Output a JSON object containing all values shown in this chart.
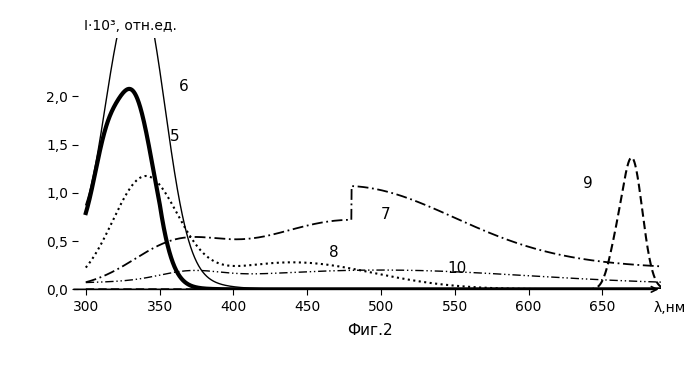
{
  "xlabel": "λ,нм",
  "ylabel": "I·10³, отн.ед.",
  "fig_caption": "Фиг.2",
  "xlim": [
    295,
    690
  ],
  "ylim": [
    0.0,
    2.6
  ],
  "yticks": [
    0.0,
    0.5,
    1.0,
    1.5,
    2.0
  ],
  "xticks": [
    300,
    350,
    400,
    450,
    500,
    550,
    600,
    650
  ],
  "background_color": "#ffffff"
}
